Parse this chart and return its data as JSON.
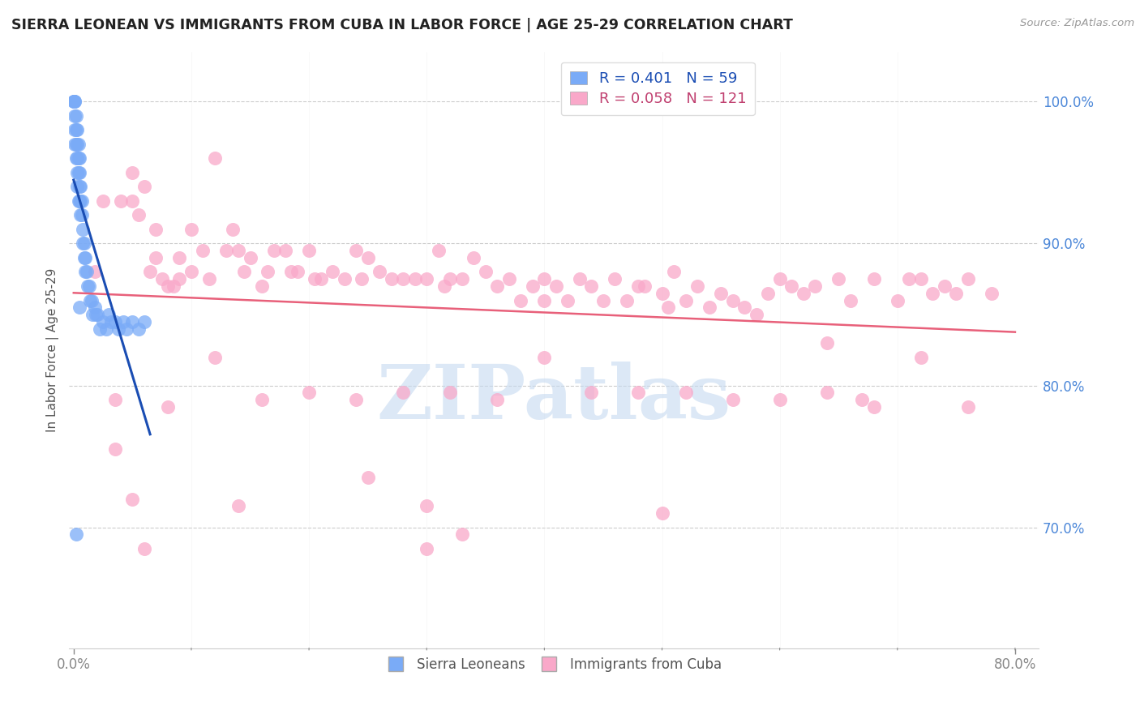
{
  "title": "SIERRA LEONEAN VS IMMIGRANTS FROM CUBA IN LABOR FORCE | AGE 25-29 CORRELATION CHART",
  "source": "Source: ZipAtlas.com",
  "ylabel": "In Labor Force | Age 25-29",
  "x_tick_labels_sparse": [
    "0.0%",
    "80.0%"
  ],
  "x_tick_values_sparse": [
    0.0,
    0.8
  ],
  "x_minor_ticks": [
    0.0,
    0.1,
    0.2,
    0.3,
    0.4,
    0.5,
    0.6,
    0.7,
    0.8
  ],
  "y_tick_labels": [
    "100.0%",
    "90.0%",
    "80.0%",
    "70.0%"
  ],
  "y_tick_values": [
    1.0,
    0.9,
    0.8,
    0.7
  ],
  "xlim": [
    -0.004,
    0.82
  ],
  "ylim": [
    0.615,
    1.035
  ],
  "sierra_color": "#7aabf7",
  "cuba_color": "#f9a8c9",
  "sierra_trend_color": "#1a4db3",
  "cuba_trend_color": "#e8607a",
  "watermark_text": "ZIPatlas",
  "watermark_color": "#c5d9f0",
  "background_color": "#ffffff",
  "grid_color": "#cccccc",
  "right_axis_color": "#4a86d8",
  "legend_top_r1": "R = 0.401   N = 59",
  "legend_top_r2": "R = 0.058   N = 121",
  "legend_top_color1": "#7aabf7",
  "legend_top_color2": "#f9a8c9",
  "legend_top_text_color": "#1a4db3",
  "legend_top_text_color2": "#c04070",
  "bottom_legend_blue": "Sierra Leoneans",
  "bottom_legend_pink": "Immigrants from Cuba",
  "sierra_x": [
    0.0,
    0.0,
    0.0,
    0.001,
    0.001,
    0.001,
    0.001,
    0.001,
    0.002,
    0.002,
    0.002,
    0.002,
    0.003,
    0.003,
    0.003,
    0.003,
    0.003,
    0.004,
    0.004,
    0.004,
    0.004,
    0.005,
    0.005,
    0.005,
    0.005,
    0.006,
    0.006,
    0.006,
    0.007,
    0.007,
    0.008,
    0.008,
    0.009,
    0.009,
    0.01,
    0.01,
    0.011,
    0.012,
    0.013,
    0.014,
    0.015,
    0.016,
    0.018,
    0.019,
    0.02,
    0.022,
    0.025,
    0.028,
    0.03,
    0.032,
    0.035,
    0.038,
    0.042,
    0.045,
    0.05,
    0.055,
    0.06,
    0.002,
    0.005
  ],
  "sierra_y": [
    1.0,
    1.0,
    1.0,
    1.0,
    1.0,
    0.99,
    0.98,
    0.97,
    0.99,
    0.98,
    0.97,
    0.96,
    0.98,
    0.97,
    0.96,
    0.95,
    0.94,
    0.97,
    0.96,
    0.95,
    0.93,
    0.96,
    0.95,
    0.94,
    0.93,
    0.94,
    0.93,
    0.92,
    0.93,
    0.92,
    0.91,
    0.9,
    0.9,
    0.89,
    0.89,
    0.88,
    0.88,
    0.87,
    0.87,
    0.86,
    0.86,
    0.85,
    0.855,
    0.85,
    0.85,
    0.84,
    0.845,
    0.84,
    0.85,
    0.845,
    0.845,
    0.84,
    0.845,
    0.84,
    0.845,
    0.84,
    0.845,
    0.695,
    0.855
  ],
  "cuba_x": [
    0.018,
    0.025,
    0.04,
    0.05,
    0.05,
    0.055,
    0.06,
    0.065,
    0.07,
    0.07,
    0.075,
    0.08,
    0.085,
    0.09,
    0.09,
    0.1,
    0.1,
    0.11,
    0.115,
    0.12,
    0.13,
    0.135,
    0.14,
    0.145,
    0.15,
    0.16,
    0.165,
    0.17,
    0.18,
    0.185,
    0.19,
    0.2,
    0.205,
    0.21,
    0.22,
    0.23,
    0.24,
    0.245,
    0.25,
    0.26,
    0.27,
    0.28,
    0.29,
    0.3,
    0.31,
    0.315,
    0.32,
    0.33,
    0.34,
    0.35,
    0.36,
    0.37,
    0.38,
    0.39,
    0.4,
    0.4,
    0.41,
    0.42,
    0.43,
    0.44,
    0.45,
    0.46,
    0.47,
    0.48,
    0.485,
    0.5,
    0.505,
    0.51,
    0.52,
    0.53,
    0.54,
    0.55,
    0.56,
    0.57,
    0.58,
    0.59,
    0.6,
    0.61,
    0.62,
    0.63,
    0.64,
    0.65,
    0.66,
    0.67,
    0.68,
    0.7,
    0.71,
    0.72,
    0.73,
    0.74,
    0.75,
    0.76,
    0.78,
    0.035,
    0.08,
    0.12,
    0.16,
    0.2,
    0.24,
    0.28,
    0.32,
    0.36,
    0.4,
    0.44,
    0.48,
    0.52,
    0.56,
    0.6,
    0.64,
    0.68,
    0.72,
    0.76,
    0.05,
    0.3,
    0.5,
    0.06,
    0.14,
    0.25,
    0.3,
    0.33,
    0.035
  ],
  "cuba_y": [
    0.88,
    0.93,
    0.93,
    0.95,
    0.93,
    0.92,
    0.94,
    0.88,
    0.91,
    0.89,
    0.875,
    0.87,
    0.87,
    0.89,
    0.875,
    0.91,
    0.88,
    0.895,
    0.875,
    0.96,
    0.895,
    0.91,
    0.895,
    0.88,
    0.89,
    0.87,
    0.88,
    0.895,
    0.895,
    0.88,
    0.88,
    0.895,
    0.875,
    0.875,
    0.88,
    0.875,
    0.895,
    0.875,
    0.89,
    0.88,
    0.875,
    0.875,
    0.875,
    0.875,
    0.895,
    0.87,
    0.875,
    0.875,
    0.89,
    0.88,
    0.87,
    0.875,
    0.86,
    0.87,
    0.86,
    0.875,
    0.87,
    0.86,
    0.875,
    0.87,
    0.86,
    0.875,
    0.86,
    0.87,
    0.87,
    0.865,
    0.855,
    0.88,
    0.86,
    0.87,
    0.855,
    0.865,
    0.86,
    0.855,
    0.85,
    0.865,
    0.875,
    0.87,
    0.865,
    0.87,
    0.83,
    0.875,
    0.86,
    0.79,
    0.875,
    0.86,
    0.875,
    0.875,
    0.865,
    0.87,
    0.865,
    0.875,
    0.865,
    0.79,
    0.785,
    0.82,
    0.79,
    0.795,
    0.79,
    0.795,
    0.795,
    0.79,
    0.82,
    0.795,
    0.795,
    0.795,
    0.79,
    0.79,
    0.795,
    0.785,
    0.82,
    0.785,
    0.72,
    0.715,
    0.71,
    0.685,
    0.715,
    0.735,
    0.685,
    0.695,
    0.755
  ]
}
